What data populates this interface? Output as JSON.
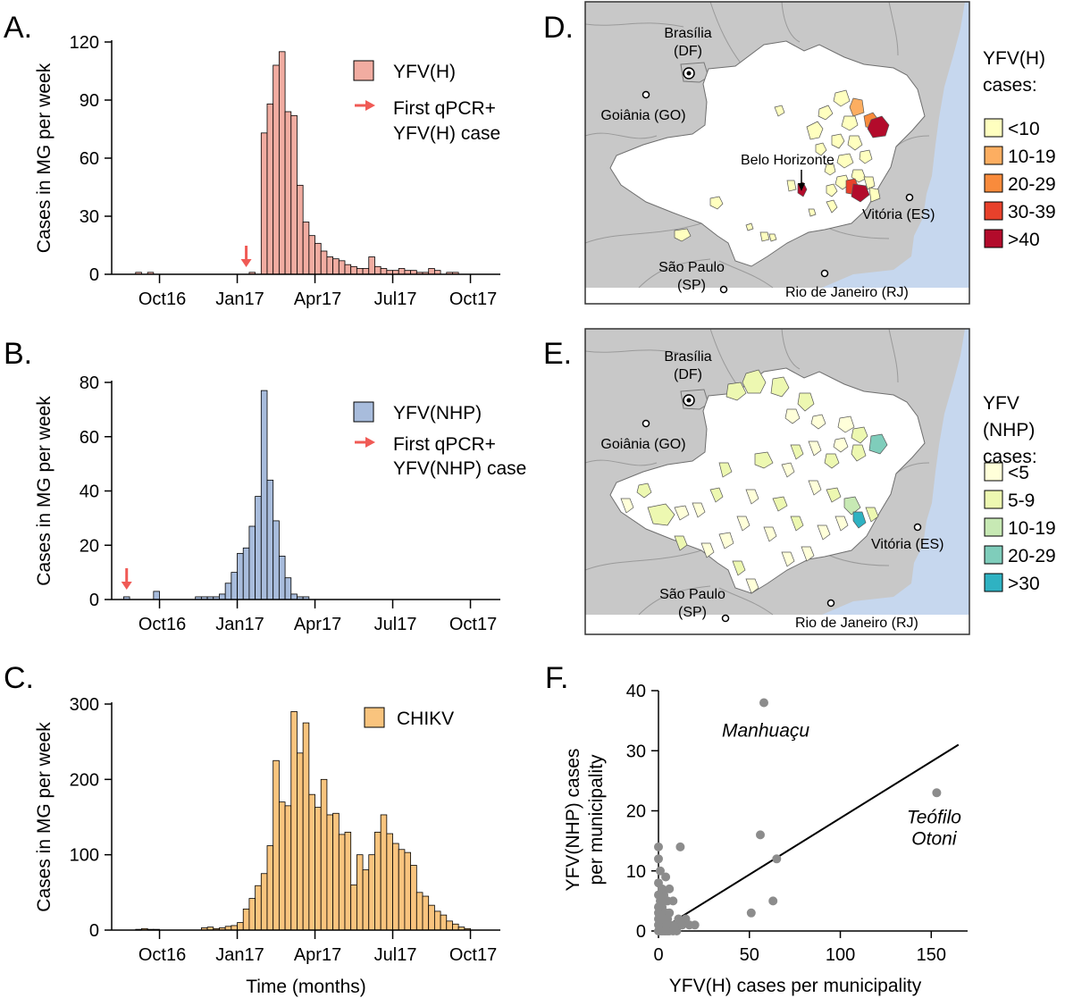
{
  "panels": {
    "A": "A.",
    "B": "B.",
    "C": "C.",
    "D": "D.",
    "E": "E.",
    "F": "F."
  },
  "colors": {
    "yfv_h": "#f1aca1",
    "yfv_nhp": "#a8bcdc",
    "chikv": "#f9c47e",
    "arrow": "#f05a55",
    "scatter_point": "#8c8c8c",
    "map_region": "#c8c8c8",
    "map_state": "#ffffff",
    "map_ocean": "#c6d7ee",
    "h_lt10": "#ffffbf",
    "h_10_19": "#fdae61",
    "h_20_29": "#f98b3c",
    "h_30_39": "#e8412b",
    "h_gt40": "#b30b2b",
    "n_lt5": "#ffffd9",
    "n_5_9": "#edf8b1",
    "n_10_19": "#c7e9b4",
    "n_20_29": "#7fcdbb",
    "n_gt30": "#2fb2c2"
  },
  "chart_data": [
    {
      "id": "A",
      "type": "bar",
      "ylabel": "Cases in MG per week",
      "xlabel": "",
      "ylim": [
        0,
        120
      ],
      "yticks": [
        0,
        30,
        60,
        90,
        120
      ],
      "xticks": [
        {
          "label": "Oct16",
          "week": 8
        },
        {
          "label": "Jan17",
          "week": 21
        },
        {
          "label": "Apr17",
          "week": 34
        },
        {
          "label": "Jul17",
          "week": 47
        },
        {
          "label": "Oct17",
          "week": 60
        }
      ],
      "week_range": [
        0,
        65
      ],
      "series": [
        {
          "name": "YFV(H)",
          "start_week": 4,
          "values": [
            1,
            0,
            1,
            0,
            0,
            0,
            0,
            0,
            0,
            0,
            0,
            0,
            0,
            0,
            0,
            0,
            0,
            0,
            0,
            1,
            0,
            73,
            88,
            108,
            115,
            84,
            82,
            46,
            27,
            20,
            16,
            12,
            9,
            8,
            7,
            5,
            4,
            3,
            3,
            9,
            4,
            3,
            2,
            2,
            3,
            2,
            2,
            1,
            1,
            3,
            2,
            0,
            1,
            1
          ]
        }
      ],
      "legend": [
        "YFV(H)",
        "First qPCR+",
        "YFV(H) case"
      ],
      "first_case_week": 22
    },
    {
      "id": "B",
      "type": "bar",
      "ylabel": "Cases in MG per week",
      "xlabel": "",
      "ylim": [
        0,
        80
      ],
      "yticks": [
        0,
        20,
        40,
        60,
        80
      ],
      "xticks": [
        {
          "label": "Oct16",
          "week": 8
        },
        {
          "label": "Jan17",
          "week": 21
        },
        {
          "label": "Apr17",
          "week": 34
        },
        {
          "label": "Jul17",
          "week": 47
        },
        {
          "label": "Oct17",
          "week": 60
        }
      ],
      "week_range": [
        0,
        65
      ],
      "series": [
        {
          "name": "YFV(NHP)",
          "start_week": 2,
          "values": [
            1,
            0,
            0,
            0,
            0,
            3,
            0,
            0,
            0,
            0,
            0,
            0,
            1,
            1,
            1,
            1,
            2,
            6,
            10,
            17,
            19,
            27,
            38,
            77,
            44,
            29,
            16,
            8,
            2,
            1,
            1
          ]
        }
      ],
      "legend": [
        "YFV(NHP)",
        "First qPCR+",
        "YFV(NHP) case"
      ],
      "first_case_week": 2
    },
    {
      "id": "C",
      "type": "bar",
      "ylabel": "Cases in MG per week",
      "xlabel": "Time (months)",
      "ylim": [
        0,
        300
      ],
      "yticks": [
        0,
        100,
        200,
        300
      ],
      "xticks": [
        {
          "label": "Oct16",
          "week": 8
        },
        {
          "label": "Jan17",
          "week": 21
        },
        {
          "label": "Apr17",
          "week": 34
        },
        {
          "label": "Jul17",
          "week": 47
        },
        {
          "label": "Oct17",
          "week": 60
        }
      ],
      "week_range": [
        0,
        65
      ],
      "series": [
        {
          "name": "CHIKV",
          "start_week": 4,
          "values": [
            1,
            2,
            1,
            1,
            0,
            0,
            0,
            0,
            0,
            0,
            0,
            3,
            4,
            2,
            3,
            5,
            6,
            10,
            28,
            42,
            59,
            75,
            112,
            225,
            170,
            165,
            290,
            235,
            275,
            180,
            163,
            200,
            153,
            155,
            127,
            130,
            60,
            100,
            80,
            100,
            130,
            153,
            128,
            115,
            107,
            103,
            86,
            50,
            45,
            33,
            25,
            20,
            12,
            8,
            4,
            2
          ]
        }
      ],
      "legend": [
        "CHIKV"
      ]
    },
    {
      "id": "F",
      "type": "scatter",
      "xlabel": "YFV(H) cases per municipality",
      "ylabel": "YFV(NHP) cases per municipality",
      "xlim": [
        0,
        170
      ],
      "ylim": [
        0,
        40
      ],
      "xticks": [
        0,
        50,
        100,
        150
      ],
      "yticks": [
        0,
        10,
        20,
        30,
        40
      ],
      "fit_line": [
        [
          0,
          0
        ],
        [
          165,
          31
        ]
      ],
      "points": [
        [
          58,
          38
        ],
        [
          153,
          23
        ],
        [
          56,
          16
        ],
        [
          65,
          12
        ],
        [
          51,
          3
        ],
        [
          63,
          5
        ],
        [
          12,
          14
        ],
        [
          0,
          14
        ],
        [
          0,
          12
        ],
        [
          1,
          10
        ],
        [
          0,
          8
        ],
        [
          2,
          7
        ],
        [
          4,
          9
        ],
        [
          6,
          7
        ],
        [
          3,
          6
        ],
        [
          8,
          5
        ],
        [
          1,
          5
        ],
        [
          0,
          6
        ],
        [
          5,
          5
        ],
        [
          2,
          4
        ],
        [
          4,
          3
        ],
        [
          1,
          3
        ],
        [
          6,
          3
        ],
        [
          0,
          2
        ],
        [
          2,
          2
        ],
        [
          3,
          2
        ],
        [
          5,
          2
        ],
        [
          1,
          1
        ],
        [
          3,
          1
        ],
        [
          6,
          1
        ],
        [
          2,
          0
        ],
        [
          4,
          0
        ],
        [
          6,
          0
        ],
        [
          9,
          1
        ],
        [
          0,
          0
        ],
        [
          1,
          0
        ],
        [
          3,
          0
        ],
        [
          5,
          0
        ],
        [
          8,
          0
        ],
        [
          0,
          1
        ],
        [
          0,
          3
        ],
        [
          0,
          4
        ],
        [
          1,
          2
        ],
        [
          15,
          2
        ],
        [
          17,
          1
        ],
        [
          13,
          1
        ],
        [
          20,
          1
        ],
        [
          10,
          0
        ],
        [
          11,
          2
        ]
      ],
      "annotations": [
        {
          "text": "Manhuaçu",
          "x": 58,
          "y": 38
        },
        {
          "text": "Teófilo",
          "x": 153,
          "y": 23
        },
        {
          "text": "Otoni",
          "x": 153,
          "y": 23
        }
      ]
    }
  ],
  "maps": {
    "D": {
      "cities": {
        "brasilia": "Brasília",
        "brasilia_state": "(DF)",
        "goiania": "Goiânia (GO)",
        "belo_horizonte": "Belo Horizonte",
        "vitoria": "Vitória (ES)",
        "sao_paulo": "São Paulo",
        "sao_paulo_state": "(SP)",
        "rio": "Rio de Janeiro (RJ)"
      },
      "legend_title": [
        "YFV(H)",
        "cases:"
      ],
      "legend": [
        "<10",
        "10-19",
        "20-29",
        "30-39",
        ">40"
      ]
    },
    "E": {
      "cities": {
        "brasilia": "Brasília",
        "brasilia_state": "(DF)",
        "goiania": "Goiânia (GO)",
        "vitoria": "Vitória (ES)",
        "sao_paulo": "São Paulo",
        "sao_paulo_state": "(SP)",
        "rio": "Rio de Janeiro (RJ)"
      },
      "legend_title": [
        "YFV",
        "(NHP)",
        "cases:"
      ],
      "legend": [
        "<5",
        "5-9",
        "10-19",
        "20-29",
        ">30"
      ]
    }
  }
}
